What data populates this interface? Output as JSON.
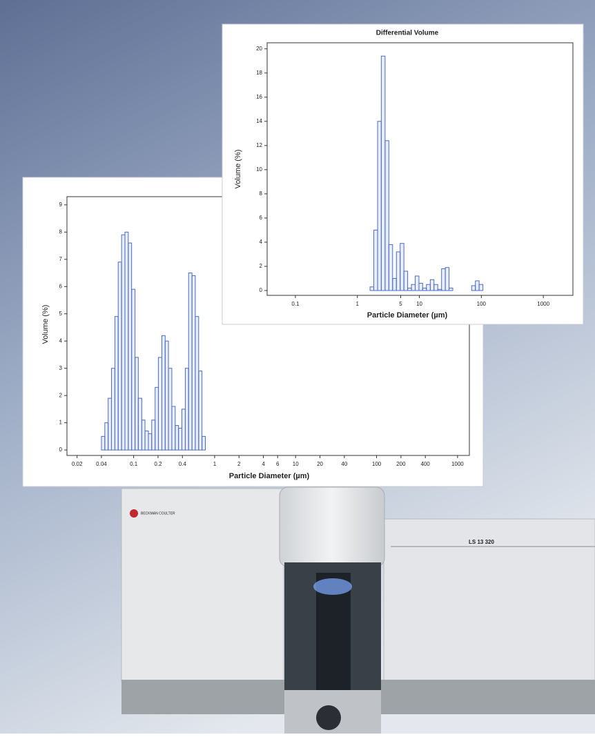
{
  "chart_data": [
    {
      "type": "histogram",
      "log_x": true,
      "color": "#4a6cc8",
      "x_label": "Particle Diameter (µm)",
      "y_label": "Volume (%)",
      "bins": [
        0.04,
        0.044,
        0.0484,
        0.0532,
        0.0586,
        0.0644,
        0.0709,
        0.078,
        0.0858,
        0.0943,
        0.104,
        0.114,
        0.126,
        0.138,
        0.152,
        0.167,
        0.184,
        0.202,
        0.223,
        0.245,
        0.269,
        0.296,
        0.326,
        0.358,
        0.394,
        0.434,
        0.477,
        0.525,
        0.577,
        0.635,
        0.698,
        0.768
      ],
      "values": [
        0.5,
        1.0,
        1.9,
        3.0,
        4.9,
        6.9,
        7.9,
        8.0,
        7.6,
        5.9,
        3.4,
        1.9,
        1.1,
        0.7,
        0.6,
        1.1,
        2.3,
        3.4,
        4.2,
        4.0,
        3.0,
        1.6,
        0.9,
        0.8,
        1.5,
        3.0,
        6.5,
        6.4,
        4.9,
        2.9,
        0.5
      ],
      "xlim": [
        0.015,
        1400
      ],
      "xticks": [
        0.02,
        0.04,
        0.1,
        0.2,
        0.4,
        1,
        2,
        4,
        6,
        10,
        20,
        40,
        100,
        200,
        400,
        1000
      ],
      "ylim": [
        -0.2,
        9.3
      ],
      "yticks": [
        0,
        1,
        2,
        3,
        4,
        5,
        6,
        7,
        8,
        9
      ]
    },
    {
      "type": "histogram",
      "log_x": true,
      "color": "#4a6cc8",
      "title": "Differential Volume",
      "x_label": "Particle Diameter (µm)",
      "y_label": "Volume (%)",
      "bins": [
        1.6,
        1.84,
        2.12,
        2.43,
        2.8,
        3.22,
        3.7,
        4.26,
        4.9,
        5.63,
        6.47,
        7.45,
        8.56,
        9.85,
        11.3,
        13.0,
        15.0,
        17.2,
        19.8,
        22.8,
        26.2,
        30.1,
        34.6,
        39.8,
        45.8,
        52.7,
        60.6,
        69.7,
        80.1,
        92.1,
        106
      ],
      "values": [
        0.3,
        5.0,
        14.0,
        19.4,
        12.4,
        3.8,
        1.0,
        3.2,
        3.9,
        1.6,
        0.2,
        0.5,
        1.2,
        0.6,
        0.2,
        0.5,
        0.9,
        0.5,
        0.1,
        1.8,
        1.9,
        0.2,
        0,
        0,
        0,
        0,
        0,
        0.4,
        0.8,
        0.5
      ],
      "xlim": [
        0.035,
        3000
      ],
      "xticks": [
        0.1,
        1,
        5,
        10,
        100,
        1000
      ],
      "ylim": [
        -0.4,
        20.5
      ],
      "yticks": [
        0,
        2,
        4,
        6,
        8,
        10,
        12,
        14,
        16,
        18,
        20
      ]
    }
  ],
  "instrument": {
    "brand": "BECKMAN COULTER",
    "model": "LS 13 320"
  }
}
